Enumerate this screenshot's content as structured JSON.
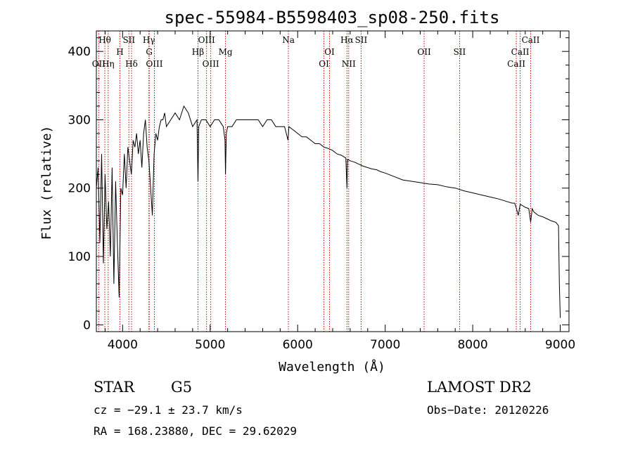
{
  "chart_data": {
    "type": "line",
    "title": "spec-55984-B5598403_sp08-250.fits",
    "xlabel": "Wavelength (Å)",
    "ylabel": "Flux (relative)",
    "xlim": [
      3700,
      9100
    ],
    "ylim": [
      -10,
      430
    ],
    "xticks": [
      4000,
      5000,
      6000,
      7000,
      8000,
      9000
    ],
    "yticks": [
      0,
      100,
      200,
      300,
      400
    ],
    "grid": false,
    "series": [
      {
        "line_color": "#000000",
        "x": [
          3700,
          3720,
          3740,
          3760,
          3780,
          3800,
          3820,
          3840,
          3860,
          3880,
          3900,
          3920,
          3940,
          3960,
          3980,
          4000,
          4020,
          4040,
          4060,
          4080,
          4100,
          4120,
          4140,
          4160,
          4180,
          4200,
          4220,
          4240,
          4260,
          4280,
          4300,
          4320,
          4340,
          4360,
          4380,
          4400,
          4420,
          4440,
          4460,
          4480,
          4500,
          4550,
          4600,
          4650,
          4700,
          4750,
          4800,
          4850,
          4861,
          4870,
          4900,
          4950,
          5000,
          5050,
          5100,
          5150,
          5170,
          5175,
          5185,
          5200,
          5250,
          5300,
          5350,
          5400,
          5450,
          5500,
          5550,
          5600,
          5650,
          5700,
          5750,
          5800,
          5850,
          5890,
          5900,
          5950,
          6000,
          6050,
          6100,
          6150,
          6200,
          6250,
          6300,
          6350,
          6400,
          6450,
          6500,
          6550,
          6563,
          6570,
          6600,
          6650,
          6700,
          6750,
          6800,
          6850,
          6900,
          6950,
          7000,
          7100,
          7200,
          7300,
          7400,
          7500,
          7600,
          7700,
          7800,
          7900,
          8000,
          8100,
          8200,
          8300,
          8400,
          8450,
          8480,
          8500,
          8520,
          8542,
          8560,
          8600,
          8640,
          8662,
          8680,
          8700,
          8750,
          8800,
          8850,
          8900,
          8950,
          8980,
          8990,
          9000
        ],
        "y": [
          200,
          230,
          120,
          250,
          90,
          220,
          140,
          180,
          100,
          230,
          60,
          210,
          120,
          40,
          200,
          190,
          250,
          200,
          260,
          240,
          220,
          270,
          260,
          280,
          250,
          270,
          230,
          280,
          300,
          260,
          240,
          200,
          160,
          250,
          280,
          270,
          290,
          300,
          300,
          310,
          290,
          300,
          310,
          300,
          320,
          310,
          290,
          300,
          210,
          290,
          300,
          300,
          290,
          300,
          300,
          290,
          270,
          220,
          280,
          290,
          290,
          300,
          300,
          300,
          300,
          300,
          300,
          290,
          300,
          300,
          290,
          290,
          290,
          270,
          290,
          285,
          280,
          275,
          275,
          270,
          265,
          265,
          260,
          258,
          255,
          250,
          248,
          244,
          200,
          242,
          240,
          238,
          235,
          232,
          230,
          228,
          227,
          224,
          222,
          217,
          212,
          210,
          208,
          206,
          205,
          202,
          200,
          196,
          193,
          190,
          187,
          184,
          180,
          178,
          178,
          170,
          160,
          176,
          175,
          172,
          170,
          150,
          170,
          165,
          160,
          158,
          155,
          152,
          150,
          145,
          60,
          10
        ]
      }
    ],
    "spectral_lines": [
      {
        "label": "Hθ",
        "x": 3797,
        "row": 0
      },
      {
        "label": "OII",
        "x": 3727,
        "row": 2
      },
      {
        "label": "Hη",
        "x": 3835,
        "row": 2
      },
      {
        "label": "H",
        "x": 3969,
        "row": 1
      },
      {
        "label": "SII",
        "x": 4072,
        "row": 0
      },
      {
        "label": "Hδ",
        "x": 4102,
        "row": 2
      },
      {
        "label": "Hγ",
        "x": 4300,
        "row": 0
      },
      {
        "label": "G",
        "x": 4304,
        "row": 1
      },
      {
        "label": "OIII",
        "x": 4363,
        "row": 2
      },
      {
        "label": "OIII",
        "x": 4959,
        "row": 0
      },
      {
        "label": "Hβ",
        "x": 4861,
        "row": 1
      },
      {
        "label": "OIII",
        "x": 5007,
        "row": 2
      },
      {
        "label": "Mg",
        "x": 5175,
        "row": 1
      },
      {
        "label": "Na",
        "x": 5894,
        "row": 0
      },
      {
        "label": "OI",
        "x": 6364,
        "row": 1
      },
      {
        "label": "OI",
        "x": 6300,
        "row": 2
      },
      {
        "label": "Hα",
        "x": 6563,
        "row": 0
      },
      {
        "label": "SII",
        "x": 6725,
        "row": 0
      },
      {
        "label": "NII",
        "x": 6583,
        "row": 2
      },
      {
        "label": "OII",
        "x": 7445,
        "row": 1
      },
      {
        "label": "SII",
        "x": 7850,
        "row": 1
      },
      {
        "label": "CaII",
        "x": 8662,
        "row": 0
      },
      {
        "label": "CaII",
        "x": 8542,
        "row": 1
      },
      {
        "label": "CaII",
        "x": 8498,
        "row": 2
      }
    ]
  },
  "info": {
    "object_class": "STAR",
    "subclass": "G5",
    "survey": "LAMOST DR2",
    "cz": "cz = −29.1 ± 23.7 km/s",
    "obs_date": "Obs−Date: 20120226",
    "radec": "RA = 168.23880, DEC =  29.62029"
  },
  "colors": {
    "spectrum": "#000000",
    "line_markers": "#cc0000",
    "axes": "#000000",
    "background": "#ffffff"
  }
}
